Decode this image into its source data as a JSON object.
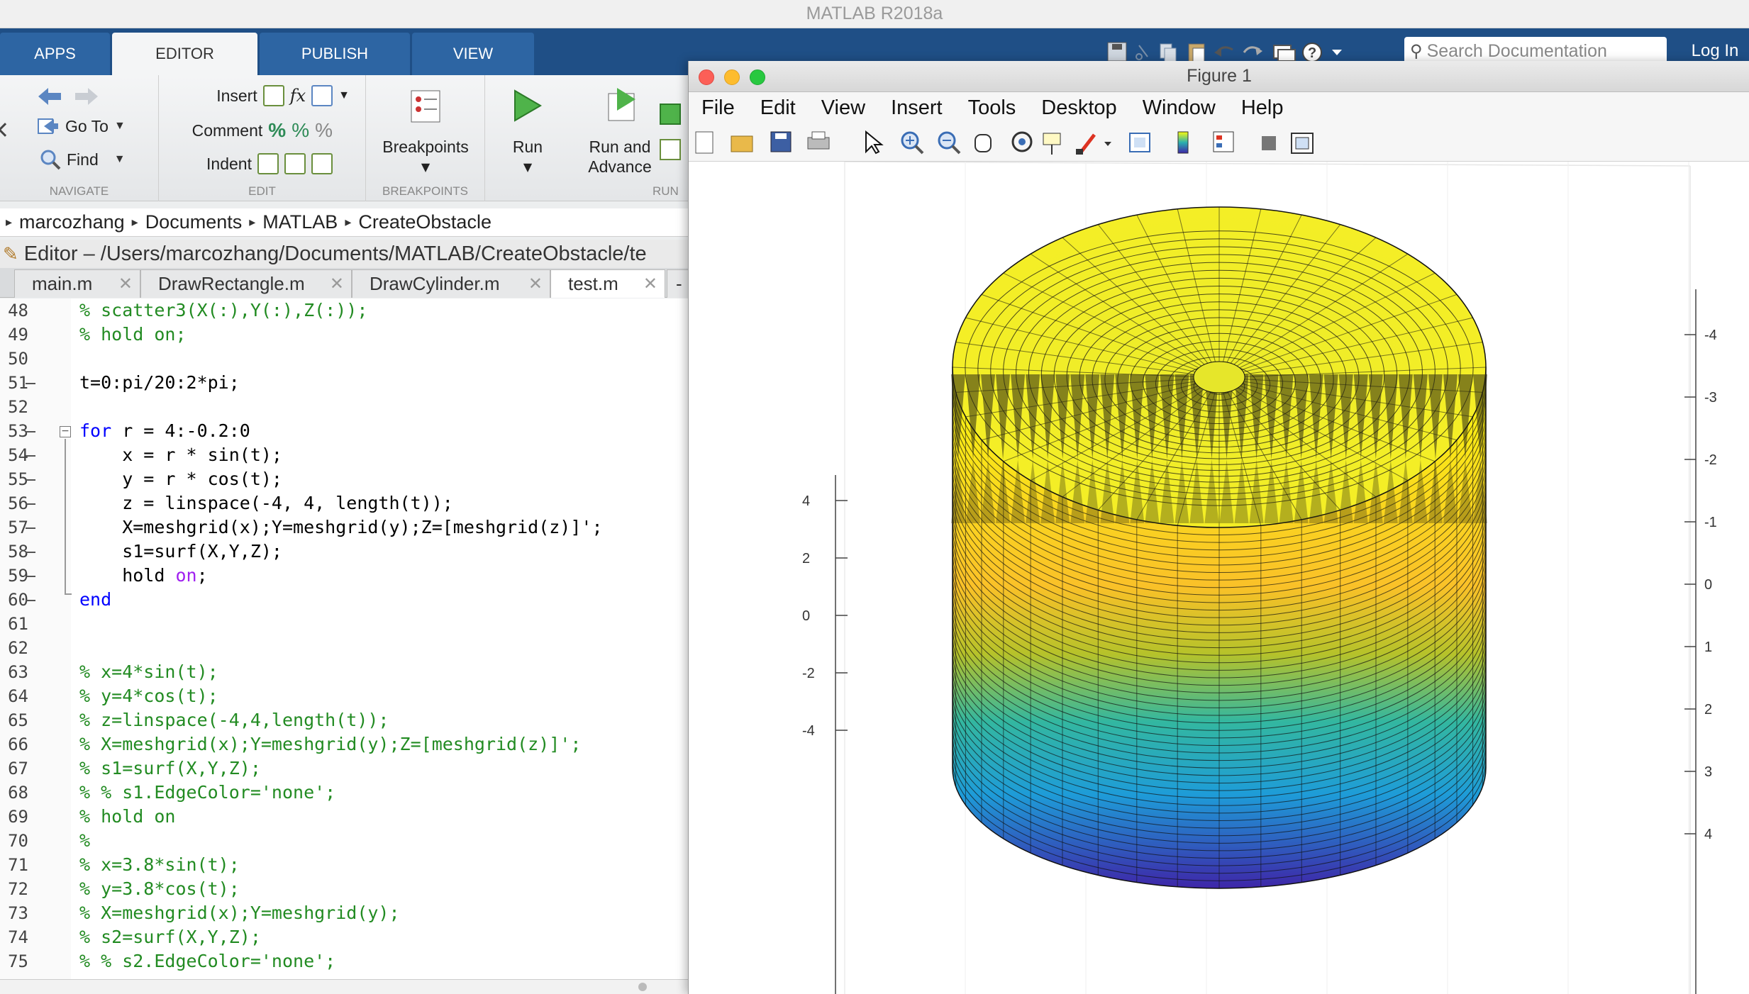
{
  "app_title": "MATLAB R2018a",
  "ribbon_tabs": [
    "APPS",
    "EDITOR",
    "PUBLISH",
    "VIEW"
  ],
  "ribbon": {
    "navigate": {
      "goto": "Go To",
      "find": "Find",
      "caption": "NAVIGATE"
    },
    "edit": {
      "insert": "Insert",
      "comment": "Comment",
      "indent": "Indent",
      "fx": "fx",
      "caption": "EDIT"
    },
    "breakpoints": {
      "label": "Breakpoints",
      "caption": "BREAKPOINTS"
    },
    "run": {
      "run": "Run",
      "run_advance_1": "Run and",
      "run_advance_2": "Advance",
      "caption": "RUN"
    }
  },
  "search": {
    "placeholder": "Search Documentation"
  },
  "login": "Log In",
  "breadcrumb": [
    "marcozhang",
    "Documents",
    "MATLAB",
    "CreateObstacle"
  ],
  "editor_header": "Editor – /Users/marcozhang/Documents/MATLAB/CreateObstacle/te",
  "file_tabs": [
    {
      "name": "main.m",
      "active": false
    },
    {
      "name": "DrawRectangle.m",
      "active": false
    },
    {
      "name": "DrawCylinder.m",
      "active": false
    },
    {
      "name": "test.m",
      "active": true
    }
  ],
  "code_lines": [
    {
      "n": "48",
      "text": "% scatter3(X(:),Y(:),Z(:));",
      "type": "comment",
      "dash": false
    },
    {
      "n": "49",
      "text": "% hold on;",
      "type": "comment",
      "dash": false
    },
    {
      "n": "50",
      "text": "",
      "type": "code",
      "dash": false
    },
    {
      "n": "51",
      "text": "t=0:pi/20:2*pi;",
      "type": "code",
      "dash": true
    },
    {
      "n": "52",
      "text": "",
      "type": "code",
      "dash": false
    },
    {
      "n": "53",
      "text": "for r = 4:-0.2:0",
      "type": "for",
      "dash": true
    },
    {
      "n": "54",
      "text": "    x = r * sin(t);",
      "type": "code",
      "dash": true
    },
    {
      "n": "55",
      "text": "    y = r * cos(t);",
      "type": "code",
      "dash": true
    },
    {
      "n": "56",
      "text": "    z = linspace(-4, 4, length(t));",
      "type": "code",
      "dash": true
    },
    {
      "n": "57",
      "text": "    X=meshgrid(x);Y=meshgrid(y);Z=[meshgrid(z)]';",
      "type": "code",
      "dash": true
    },
    {
      "n": "58",
      "text": "    s1=surf(X,Y,Z);",
      "type": "code",
      "dash": true
    },
    {
      "n": "59",
      "text": "    hold on;",
      "type": "hold",
      "dash": true
    },
    {
      "n": "60",
      "text": "end",
      "type": "end",
      "dash": true
    },
    {
      "n": "61",
      "text": "",
      "type": "code",
      "dash": false
    },
    {
      "n": "62",
      "text": "",
      "type": "code",
      "dash": false
    },
    {
      "n": "63",
      "text": "% x=4*sin(t);",
      "type": "comment",
      "dash": false
    },
    {
      "n": "64",
      "text": "% y=4*cos(t);",
      "type": "comment",
      "dash": false
    },
    {
      "n": "65",
      "text": "% z=linspace(-4,4,length(t));",
      "type": "comment",
      "dash": false
    },
    {
      "n": "66",
      "text": "% X=meshgrid(x);Y=meshgrid(y);Z=[meshgrid(z)]';",
      "type": "comment",
      "dash": false
    },
    {
      "n": "67",
      "text": "% s1=surf(X,Y,Z);",
      "type": "comment",
      "dash": false
    },
    {
      "n": "68",
      "text": "% % s1.EdgeColor='none';",
      "type": "comment",
      "dash": false
    },
    {
      "n": "69",
      "text": "% hold on",
      "type": "comment",
      "dash": false
    },
    {
      "n": "70",
      "text": "%",
      "type": "comment",
      "dash": false
    },
    {
      "n": "71",
      "text": "% x=3.8*sin(t);",
      "type": "comment",
      "dash": false
    },
    {
      "n": "72",
      "text": "% y=3.8*cos(t);",
      "type": "comment",
      "dash": false
    },
    {
      "n": "73",
      "text": "% X=meshgrid(x);Y=meshgrid(y);",
      "type": "comment",
      "dash": false
    },
    {
      "n": "74",
      "text": "% s2=surf(X,Y,Z);",
      "type": "comment",
      "dash": false
    },
    {
      "n": "75",
      "text": "% % s2.EdgeColor='none';",
      "type": "comment",
      "dash": false
    }
  ],
  "figure": {
    "title": "Figure 1",
    "menus": [
      "File",
      "Edit",
      "View",
      "Insert",
      "Tools",
      "Desktop",
      "Window",
      "Help"
    ],
    "toolbar_icons": [
      "new-figure-icon",
      "open-file-icon",
      "save-icon",
      "print-icon",
      "pointer-icon",
      "zoom-in-icon",
      "zoom-out-icon",
      "pan-hand-icon",
      "rotate-3d-icon",
      "data-cursor-icon",
      "brush-icon",
      "brush-dropdown-icon",
      "link-plot-icon",
      "colorbar-icon",
      "legend-icon",
      "hide-plot-tools-icon",
      "show-plot-tools-icon"
    ],
    "left_axis_ticks": [
      "4",
      "2",
      "0",
      "-2",
      "-4"
    ],
    "right_axis_ticks": [
      "-4",
      "-3",
      "-2",
      "-1",
      "0",
      "1",
      "2",
      "3",
      "4"
    ],
    "colormap": "parula"
  }
}
